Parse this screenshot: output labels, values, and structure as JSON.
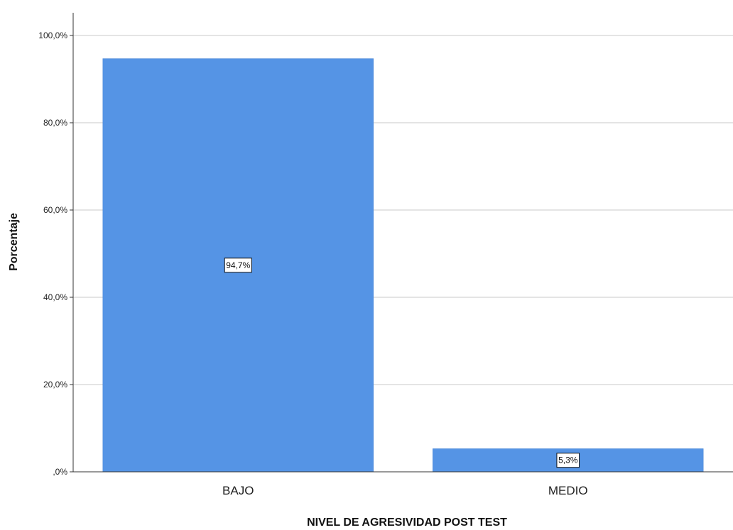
{
  "chart_data": {
    "type": "bar",
    "categories": [
      "BAJO",
      "MEDIO"
    ],
    "values": [
      94.7,
      5.3
    ],
    "value_labels": [
      "94,7%",
      "5,3%"
    ],
    "title": "",
    "xlabel": "NIVEL DE AGRESIVIDAD POST TEST",
    "ylabel": "Porcentaje",
    "ylim": [
      0,
      100
    ],
    "yticks": [
      0,
      20,
      40,
      60,
      80,
      100
    ],
    "ytick_labels": [
      ",0%",
      "20,0%",
      "40,0%",
      "60,0%",
      "80,0%",
      "100,0%"
    ],
    "grid": true,
    "bar_color": "#5594e5"
  }
}
